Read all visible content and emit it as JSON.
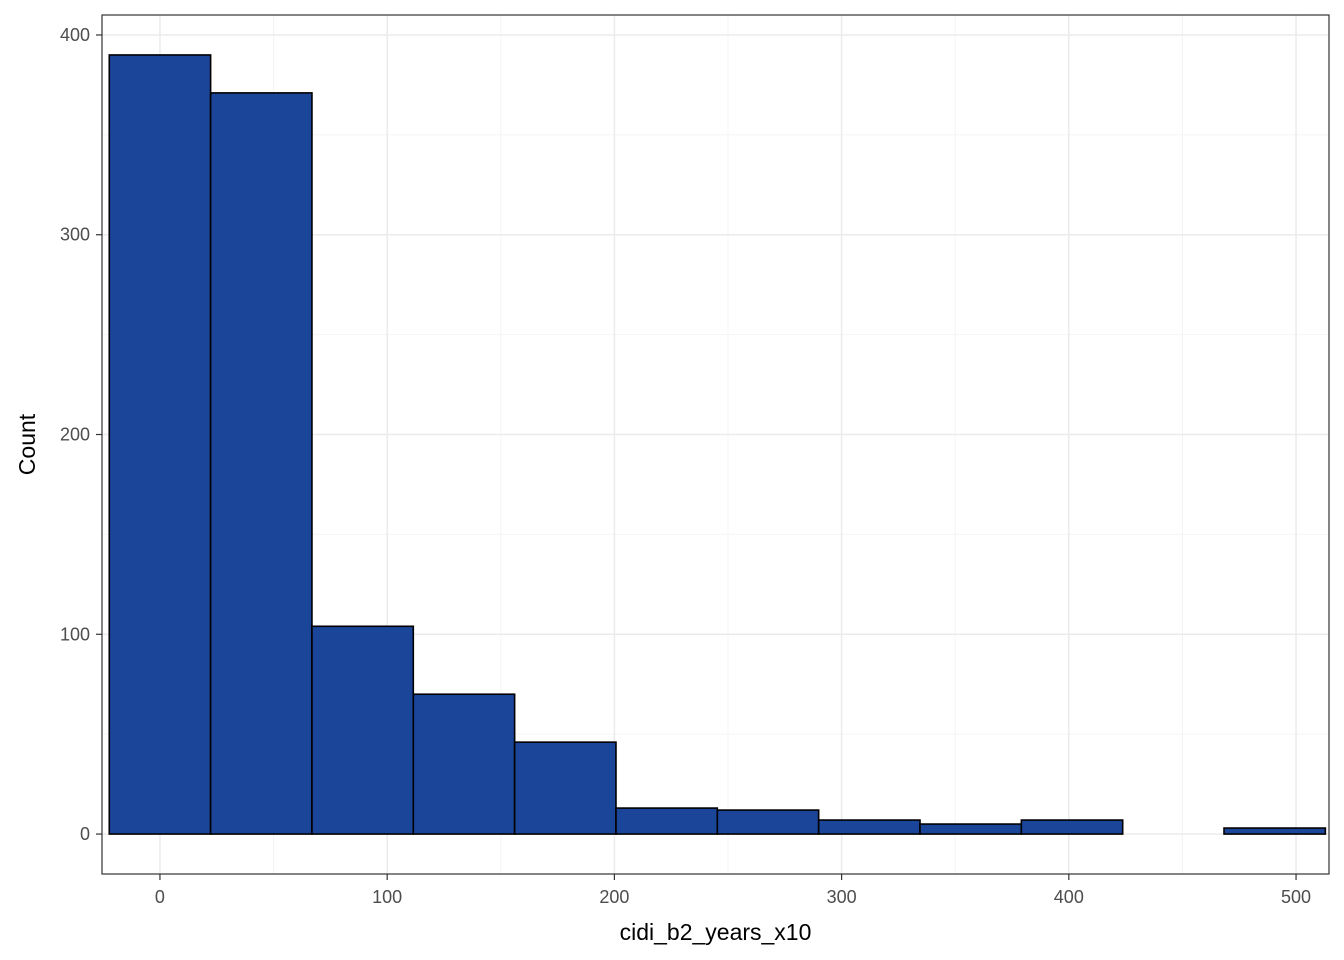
{
  "chart_data": {
    "type": "bar",
    "subtype": "histogram",
    "title": "",
    "xlabel": "cidi_b2_years_x10",
    "ylabel": "Count",
    "xlim": [
      -25.5,
      514.5
    ],
    "ylim": [
      -20,
      410
    ],
    "x_ticks": [
      0,
      100,
      200,
      300,
      400,
      500
    ],
    "y_ticks": [
      0,
      100,
      200,
      300,
      400
    ],
    "grid": true,
    "legend": "none",
    "bins": [
      {
        "x0": -22.3,
        "x1": 22.3,
        "count": 390
      },
      {
        "x0": 22.3,
        "x1": 66.9,
        "count": 371
      },
      {
        "x0": 66.9,
        "x1": 111.5,
        "count": 104
      },
      {
        "x0": 111.5,
        "x1": 156.1,
        "count": 70
      },
      {
        "x0": 156.1,
        "x1": 200.7,
        "count": 46
      },
      {
        "x0": 200.7,
        "x1": 245.3,
        "count": 13
      },
      {
        "x0": 245.3,
        "x1": 289.9,
        "count": 12
      },
      {
        "x0": 289.9,
        "x1": 334.5,
        "count": 7
      },
      {
        "x0": 334.5,
        "x1": 379.1,
        "count": 5
      },
      {
        "x0": 379.1,
        "x1": 423.7,
        "count": 7
      },
      {
        "x0": 423.7,
        "x1": 468.3,
        "count": 0
      },
      {
        "x0": 468.3,
        "x1": 512.9,
        "count": 3
      }
    ],
    "colors": {
      "bar_fill": "#1A4599",
      "bar_stroke": "#000000",
      "grid_major": "#EBEBEB",
      "grid_minor": "#F4F4F4",
      "panel_border": "#333333",
      "tick_text": "#4D4D4D"
    }
  }
}
